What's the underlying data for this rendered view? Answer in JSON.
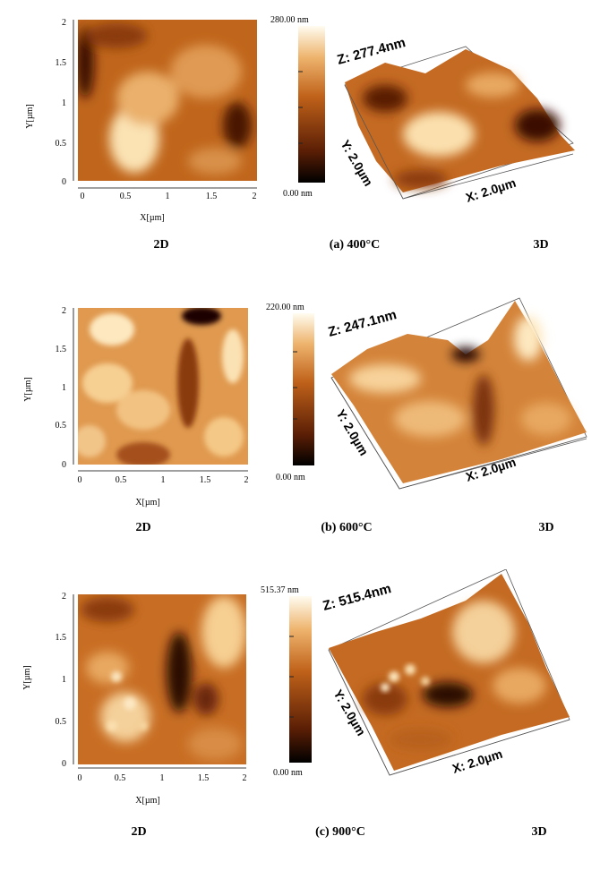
{
  "panels": [
    {
      "id": "a",
      "caption": "(a) 400°C",
      "label_2d": "2D",
      "label_3d": "3D",
      "x_axis_label": "X[µm]",
      "y_axis_label": "Y[µm]",
      "x_ticks": [
        "0",
        "0.5",
        "1",
        "1.5",
        "2"
      ],
      "y_ticks": [
        "0",
        "0.5",
        "1",
        "1.5",
        "2"
      ],
      "colorbar_max": "280.00 nm",
      "colorbar_min": "0.00 nm",
      "z_label": "Z: 277.4nm",
      "y3d_label": "Y: 2.0µm",
      "x3d_label": "X: 2.0µm"
    },
    {
      "id": "b",
      "caption": "(b) 600°C",
      "label_2d": "2D",
      "label_3d": "3D",
      "x_axis_label": "X[µm]",
      "y_axis_label": "Y[µm]",
      "x_ticks": [
        "0",
        "0.5",
        "1",
        "1.5",
        "2"
      ],
      "y_ticks": [
        "0",
        "0.5",
        "1",
        "1.5",
        "2"
      ],
      "colorbar_max": "220.00 nm",
      "colorbar_min": "0.00 nm",
      "z_label": "Z: 247.1nm",
      "y3d_label": "Y: 2.0µm",
      "x3d_label": "X: 2.0µm"
    },
    {
      "id": "c",
      "caption": "(c) 900°C",
      "label_2d": "2D",
      "label_3d": "3D",
      "x_axis_label": "X[µm]",
      "y_axis_label": "Y[µm]",
      "x_ticks": [
        "0",
        "0.5",
        "1",
        "1.5",
        "2"
      ],
      "y_ticks": [
        "0",
        "0.5",
        "1",
        "1.5",
        "2"
      ],
      "colorbar_max": "515.37 nm",
      "colorbar_min": "0.00 nm",
      "z_label": "Z: 515.4nm",
      "y3d_label": "Y: 2.0µm",
      "x3d_label": "X: 2.0µm"
    }
  ],
  "colors": {
    "dark": "#1a0500",
    "mid": "#b85a14",
    "light": "#fdf3dc"
  }
}
